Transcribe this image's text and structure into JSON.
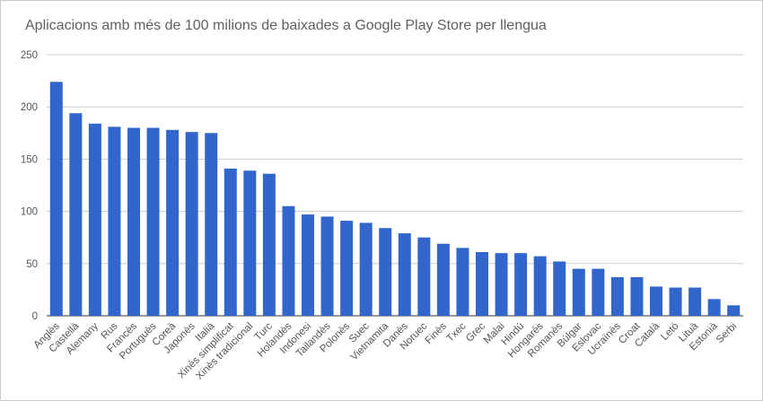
{
  "chart_data": {
    "type": "bar",
    "title": "Aplicacions amb més de 100 milions de baixades a Google Play Store per llengua",
    "xlabel": "",
    "ylabel": "",
    "ylim": [
      0,
      250
    ],
    "yticks": [
      0,
      50,
      100,
      150,
      200,
      250
    ],
    "grid": true,
    "legend": "none",
    "bar_color": "#3366cc",
    "categories": [
      "Anglès",
      "Castellà",
      "Alemany",
      "Rus",
      "Francès",
      "Portuguès",
      "Coreà",
      "Japonès",
      "Italià",
      "Xinès simplificat",
      "Xinès tradicional",
      "Turc",
      "Holandès",
      "Indonesi",
      "Tailandès",
      "Polonès",
      "Suec",
      "Vietnamita",
      "Danès",
      "Noruec",
      "Finès",
      "Txec",
      "Grec",
      "Malai",
      "Hindú",
      "Hongarès",
      "Romanès",
      "Búlgar",
      "Eslovac",
      "Ucraïnès",
      "Croat",
      "Català",
      "Letó",
      "Lituà",
      "Estonià",
      "Serbi"
    ],
    "values": [
      224,
      194,
      184,
      181,
      180,
      180,
      178,
      176,
      175,
      141,
      139,
      136,
      105,
      97,
      95,
      91,
      89,
      84,
      79,
      75,
      69,
      65,
      61,
      60,
      60,
      57,
      52,
      45,
      45,
      37,
      37,
      28,
      27,
      27,
      16,
      10
    ]
  }
}
